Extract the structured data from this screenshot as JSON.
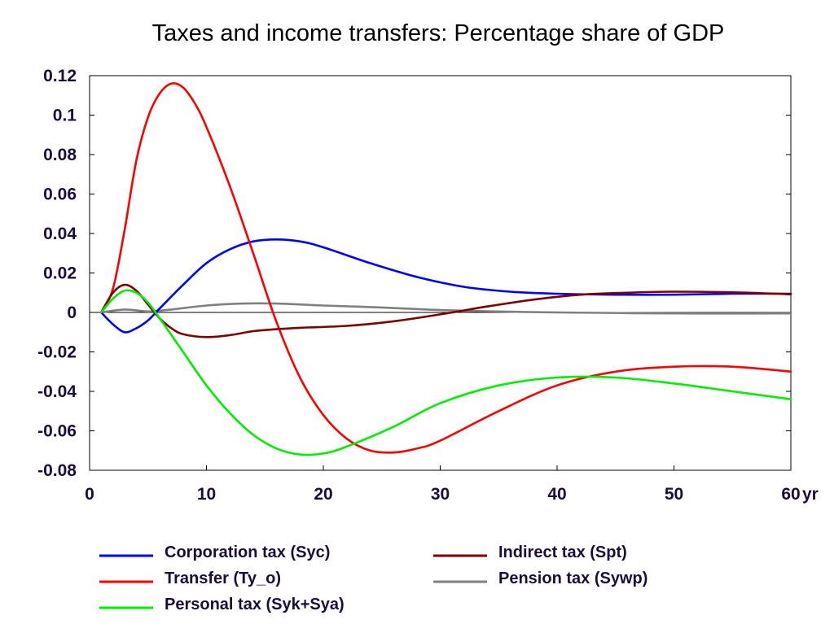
{
  "chart_data": {
    "type": "line",
    "title": "Taxes and income transfers: Percentage share of GDP",
    "xlabel": "",
    "ylabel": "",
    "x_unit": "yr",
    "xlim": [
      0,
      60
    ],
    "ylim": [
      -0.08,
      0.12
    ],
    "x_ticks": [
      "0",
      "10",
      "20",
      "30",
      "40",
      "50",
      "60"
    ],
    "y_ticks": [
      "0.12",
      "0.1",
      "0.08",
      "0.06",
      "0.04",
      "0.02",
      "0",
      "-0.02",
      "-0.04",
      "-0.06",
      "-0.08"
    ],
    "grid": false,
    "legend_position": "bottom",
    "series": [
      {
        "name": "Corporation tax (Syc)",
        "color": "#0000ff",
        "x": [
          1,
          2,
          3,
          4,
          5,
          6,
          8,
          10,
          12,
          14,
          16,
          18,
          20,
          24,
          28,
          32,
          36,
          40,
          45,
          50,
          55,
          60
        ],
        "y": [
          0,
          -0.006,
          -0.01,
          -0.008,
          -0.004,
          0.002,
          0.014,
          0.025,
          0.032,
          0.036,
          0.037,
          0.036,
          0.033,
          0.025,
          0.018,
          0.013,
          0.0105,
          0.0095,
          0.009,
          0.009,
          0.0095,
          0.0095
        ]
      },
      {
        "name": "Transfer (Ty_o)",
        "color": "#ff0000",
        "x": [
          1,
          2,
          3,
          4,
          5,
          6,
          7,
          8,
          9,
          10,
          12,
          14,
          16,
          18,
          20,
          22,
          24,
          26,
          28,
          30,
          35,
          40,
          45,
          50,
          55,
          60
        ],
        "y": [
          0,
          0.012,
          0.042,
          0.077,
          0.099,
          0.111,
          0.116,
          0.114,
          0.106,
          0.094,
          0.064,
          0.03,
          -0.005,
          -0.033,
          -0.052,
          -0.064,
          -0.07,
          -0.071,
          -0.069,
          -0.065,
          -0.05,
          -0.037,
          -0.03,
          -0.0275,
          -0.0275,
          -0.03
        ]
      },
      {
        "name": "Personal tax (Syk+Sya)",
        "color": "#00ee00",
        "x": [
          1,
          2,
          3,
          4,
          5,
          6,
          8,
          10,
          12,
          14,
          16,
          18,
          20,
          22,
          26,
          30,
          35,
          40,
          45,
          50,
          55,
          60
        ],
        "y": [
          0,
          0.007,
          0.011,
          0.01,
          0.005,
          -0.003,
          -0.02,
          -0.037,
          -0.051,
          -0.062,
          -0.069,
          -0.072,
          -0.0715,
          -0.068,
          -0.058,
          -0.046,
          -0.037,
          -0.033,
          -0.033,
          -0.036,
          -0.04,
          -0.044
        ]
      },
      {
        "name": "Indirect tax (Spt)",
        "color": "#800000",
        "x": [
          1,
          2,
          3,
          4,
          5,
          6,
          7,
          8,
          10,
          12,
          14,
          16,
          18,
          22,
          26,
          30,
          34,
          38,
          42,
          46,
          50,
          55,
          60
        ],
        "y": [
          0,
          0.01,
          0.014,
          0.011,
          0.004,
          -0.003,
          -0.008,
          -0.011,
          -0.0125,
          -0.0115,
          -0.0095,
          -0.0085,
          -0.0078,
          -0.0068,
          -0.0045,
          -0.001,
          0.003,
          0.0065,
          0.009,
          0.01,
          0.0105,
          0.0102,
          0.0092
        ]
      },
      {
        "name": "Pension tax (Sywp)",
        "color": "#808080",
        "x": [
          1,
          3,
          5,
          7,
          10,
          13,
          16,
          20,
          25,
          30,
          35,
          40,
          50,
          60
        ],
        "y": [
          0,
          0.0015,
          0.0005,
          0.0015,
          0.0035,
          0.0045,
          0.0045,
          0.0035,
          0.0025,
          0.0012,
          0.0005,
          0.0,
          -0.0005,
          -0.0005
        ]
      }
    ]
  }
}
